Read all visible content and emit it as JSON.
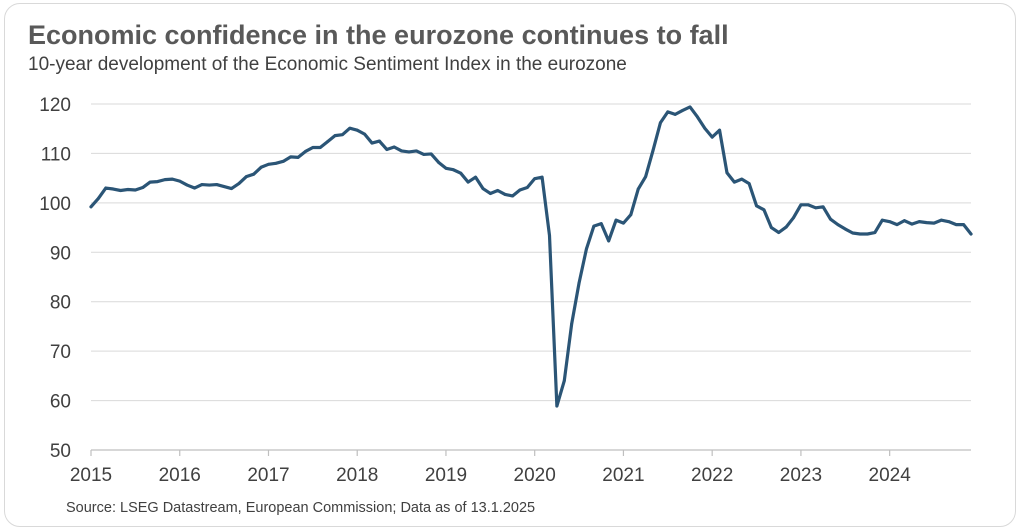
{
  "title": "Economic confidence in the eurozone continues to fall",
  "subtitle": "10-year development of the Economic Sentiment Index in the eurozone",
  "source": "Source: LSEG Datastream, European Commission; Data as of 13.1.2025",
  "colors": {
    "line": "#2b5576",
    "grid": "#d9d9d9",
    "axis": "#bfbfbf",
    "text": "#404040"
  },
  "chart_data": {
    "type": "line",
    "title": "Economic confidence in the eurozone continues to fall",
    "subtitle": "10-year development of the Economic Sentiment Index in the eurozone",
    "xlabel": "",
    "ylabel": "",
    "ylim": [
      50,
      120
    ],
    "xlim": [
      "2015-01",
      "2024-12"
    ],
    "yticks": [
      50,
      60,
      70,
      80,
      90,
      100,
      110,
      120
    ],
    "xticks": [
      "2015",
      "2016",
      "2017",
      "2018",
      "2019",
      "2020",
      "2021",
      "2022",
      "2023",
      "2024"
    ],
    "grid": "horizontal",
    "legend": "none",
    "series": [
      {
        "x": [
          "2015-01",
          "2015-02",
          "2015-03",
          "2015-04",
          "2015-05",
          "2015-06",
          "2015-07",
          "2015-08",
          "2015-09",
          "2015-10",
          "2015-11",
          "2015-12",
          "2016-01",
          "2016-02",
          "2016-03",
          "2016-04",
          "2016-05",
          "2016-06",
          "2016-07",
          "2016-08",
          "2016-09",
          "2016-10",
          "2016-11",
          "2016-12",
          "2017-01",
          "2017-02",
          "2017-03",
          "2017-04",
          "2017-05",
          "2017-06",
          "2017-07",
          "2017-08",
          "2017-09",
          "2017-10",
          "2017-11",
          "2017-12",
          "2018-01",
          "2018-02",
          "2018-03",
          "2018-04",
          "2018-05",
          "2018-06",
          "2018-07",
          "2018-08",
          "2018-09",
          "2018-10",
          "2018-11",
          "2018-12",
          "2019-01",
          "2019-02",
          "2019-03",
          "2019-04",
          "2019-05",
          "2019-06",
          "2019-07",
          "2019-08",
          "2019-09",
          "2019-10",
          "2019-11",
          "2019-12",
          "2020-01",
          "2020-02",
          "2020-03",
          "2020-04",
          "2020-05",
          "2020-06",
          "2020-07",
          "2020-08",
          "2020-09",
          "2020-10",
          "2020-11",
          "2020-12",
          "2021-01",
          "2021-02",
          "2021-03",
          "2021-04",
          "2021-05",
          "2021-06",
          "2021-07",
          "2021-08",
          "2021-09",
          "2021-10",
          "2021-11",
          "2021-12",
          "2022-01",
          "2022-02",
          "2022-03",
          "2022-04",
          "2022-05",
          "2022-06",
          "2022-07",
          "2022-08",
          "2022-09",
          "2022-10",
          "2022-11",
          "2022-12",
          "2023-01",
          "2023-02",
          "2023-03",
          "2023-04",
          "2023-05",
          "2023-06",
          "2023-07",
          "2023-08",
          "2023-09",
          "2023-10",
          "2023-11",
          "2023-12",
          "2024-01",
          "2024-02",
          "2024-03",
          "2024-04",
          "2024-05",
          "2024-06",
          "2024-07",
          "2024-08",
          "2024-09",
          "2024-10",
          "2024-11",
          "2024-12"
        ],
        "values": [
          99.2,
          100.9,
          103.0,
          102.8,
          102.5,
          102.7,
          102.6,
          103.1,
          104.2,
          104.3,
          104.7,
          104.8,
          104.4,
          103.6,
          103.0,
          103.7,
          103.6,
          103.7,
          103.3,
          102.9,
          103.9,
          105.3,
          105.8,
          107.2,
          107.8,
          108.0,
          108.4,
          109.3,
          109.2,
          110.4,
          111.2,
          111.2,
          112.4,
          113.6,
          113.8,
          115.1,
          114.7,
          113.9,
          112.1,
          112.5,
          110.8,
          111.3,
          110.5,
          110.3,
          110.5,
          109.8,
          109.9,
          108.2,
          107.0,
          106.7,
          106.0,
          104.2,
          105.2,
          102.9,
          101.9,
          102.5,
          101.7,
          101.4,
          102.6,
          103.1,
          104.9,
          105.2,
          93.4,
          58.9,
          64.0,
          75.5,
          83.8,
          90.7,
          95.3,
          95.8,
          92.3,
          96.5,
          95.9,
          97.6,
          102.8,
          105.3,
          110.6,
          116.2,
          118.4,
          117.9,
          118.7,
          119.4,
          117.4,
          115.1,
          113.3,
          114.7,
          106.1,
          104.2,
          104.8,
          103.9,
          99.4,
          98.6,
          95.0,
          94.0,
          95.1,
          97.0,
          99.6,
          99.6,
          99.0,
          99.2,
          96.7,
          95.6,
          94.7,
          93.9,
          93.7,
          93.7,
          94.0,
          96.5,
          96.2,
          95.6,
          96.4,
          95.7,
          96.2,
          96.0,
          95.9,
          96.5,
          96.2,
          95.6,
          95.6,
          93.7
        ]
      }
    ]
  }
}
